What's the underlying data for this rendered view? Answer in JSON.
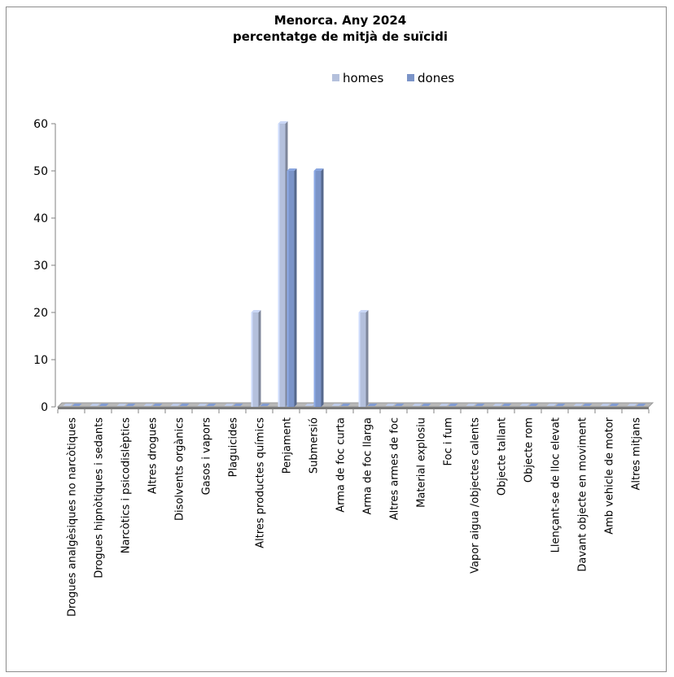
{
  "chart_data": {
    "type": "bar",
    "title": "Menorca. Any 2024",
    "subtitle": "percentatge de mitjà de suïcidi",
    "xlabel": "",
    "ylabel": "",
    "ylim": [
      0,
      60
    ],
    "yticks": [
      0,
      10,
      20,
      30,
      40,
      50,
      60
    ],
    "legend_position": "top",
    "categories": [
      "Drogues analgèsiques no narcòtiques",
      "Drogues hipnòtiques i sedants",
      "Narcòtics i psicodislèptics",
      "Altres drogues",
      "Disolvents orgànics",
      "Gasos i vapors",
      "Plaguicides",
      "Altres productes químics",
      "Penjament",
      "Submersió",
      "Arma de foc curta",
      "Arma de foc llarga",
      "Altres armes de foc",
      "Material explosiu",
      "Foc i fum",
      "Vapor aigua /objectes calents",
      "Objecte tallant",
      "Objecte rom",
      "Llençant-se de lloc elevat",
      "Davant objecte en moviment",
      "Amb vehicle de motor",
      "Altres mitjans"
    ],
    "series": [
      {
        "name": "homes",
        "color": "#b4c0dc",
        "values": [
          0,
          0,
          0,
          0,
          0,
          0,
          0,
          20,
          60,
          0,
          0,
          20,
          0,
          0,
          0,
          0,
          0,
          0,
          0,
          0,
          0,
          0
        ]
      },
      {
        "name": "dones",
        "color": "#7b94c8",
        "values": [
          0,
          0,
          0,
          0,
          0,
          0,
          0,
          0,
          50,
          50,
          0,
          0,
          0,
          0,
          0,
          0,
          0,
          0,
          0,
          0,
          0,
          0
        ]
      }
    ],
    "grid": false
  }
}
